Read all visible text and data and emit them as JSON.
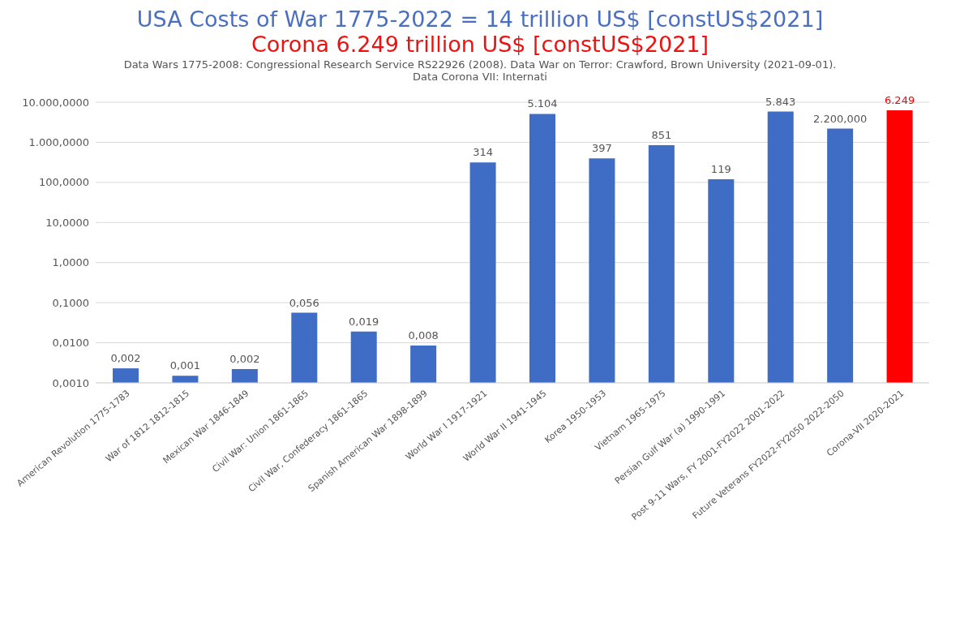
{
  "chart_data": {
    "type": "bar",
    "title": "USA Costs of War 1775-2022 = 14 trillion US$ [constUS$2021]",
    "subtitle": "Corona 6.249 trillion US$ [constUS$2021]",
    "annotations": [
      "Data Wars 1775-2008: Congressional Research Service RS22926 (2008). Data War on Terror: Crawford, Brown University (2021-09-01). Data Corona VII: Internati"
    ],
    "categories": [
      "American Revolution 1775-1783",
      "War of 1812 1812-1815",
      "Mexican War 1846-1849",
      "Civil War: Union 1861-1865",
      "Civil War, Confederacy 1861-1865",
      "Spanish American War 1898-1899",
      "World War I 1917-1921",
      "World War II 1941-1945",
      "Korea 1950-1953",
      "Vietnam 1965-1975",
      "Persian Gulf War (a) 1990-1991",
      "Post 9-11 Wars, FY 2001-FY2022  2001-2022",
      "Future Veterans FY2022-FY2050 2022-2050",
      "Corona-VII 2020-2021"
    ],
    "values": [
      0.0023,
      0.0015,
      0.0022,
      0.056,
      0.019,
      0.0085,
      314,
      5104,
      397,
      851,
      119,
      5843,
      2200,
      6249
    ],
    "value_labels": [
      "0,002",
      "0,001",
      "0,002",
      "0,056",
      "0,019",
      "0,008",
      "314",
      "5.104",
      "397",
      "851",
      "119",
      "5.843",
      "2.200,000",
      "6.249"
    ],
    "colors": [
      "#3f6cc4",
      "#3f6cc4",
      "#3f6cc4",
      "#3f6cc4",
      "#3f6cc4",
      "#3f6cc4",
      "#3f6cc4",
      "#3f6cc4",
      "#3f6cc4",
      "#3f6cc4",
      "#3f6cc4",
      "#3f6cc4",
      "#3f6cc4",
      "#ff0000"
    ],
    "log": "y",
    "ylim": [
      0.001,
      10000
    ],
    "yticks": [
      {
        "value": 0.001,
        "label": "0,0010"
      },
      {
        "value": 0.01,
        "label": "0,0100"
      },
      {
        "value": 0.1,
        "label": "0,1000"
      },
      {
        "value": 1,
        "label": "1,0000"
      },
      {
        "value": 10,
        "label": "10,0000"
      },
      {
        "value": 100,
        "label": "100,0000"
      },
      {
        "value": 1000,
        "label": "1.000,0000"
      },
      {
        "value": 10000,
        "label": "10.000,0000"
      }
    ],
    "grid": "y",
    "legend": false
  }
}
